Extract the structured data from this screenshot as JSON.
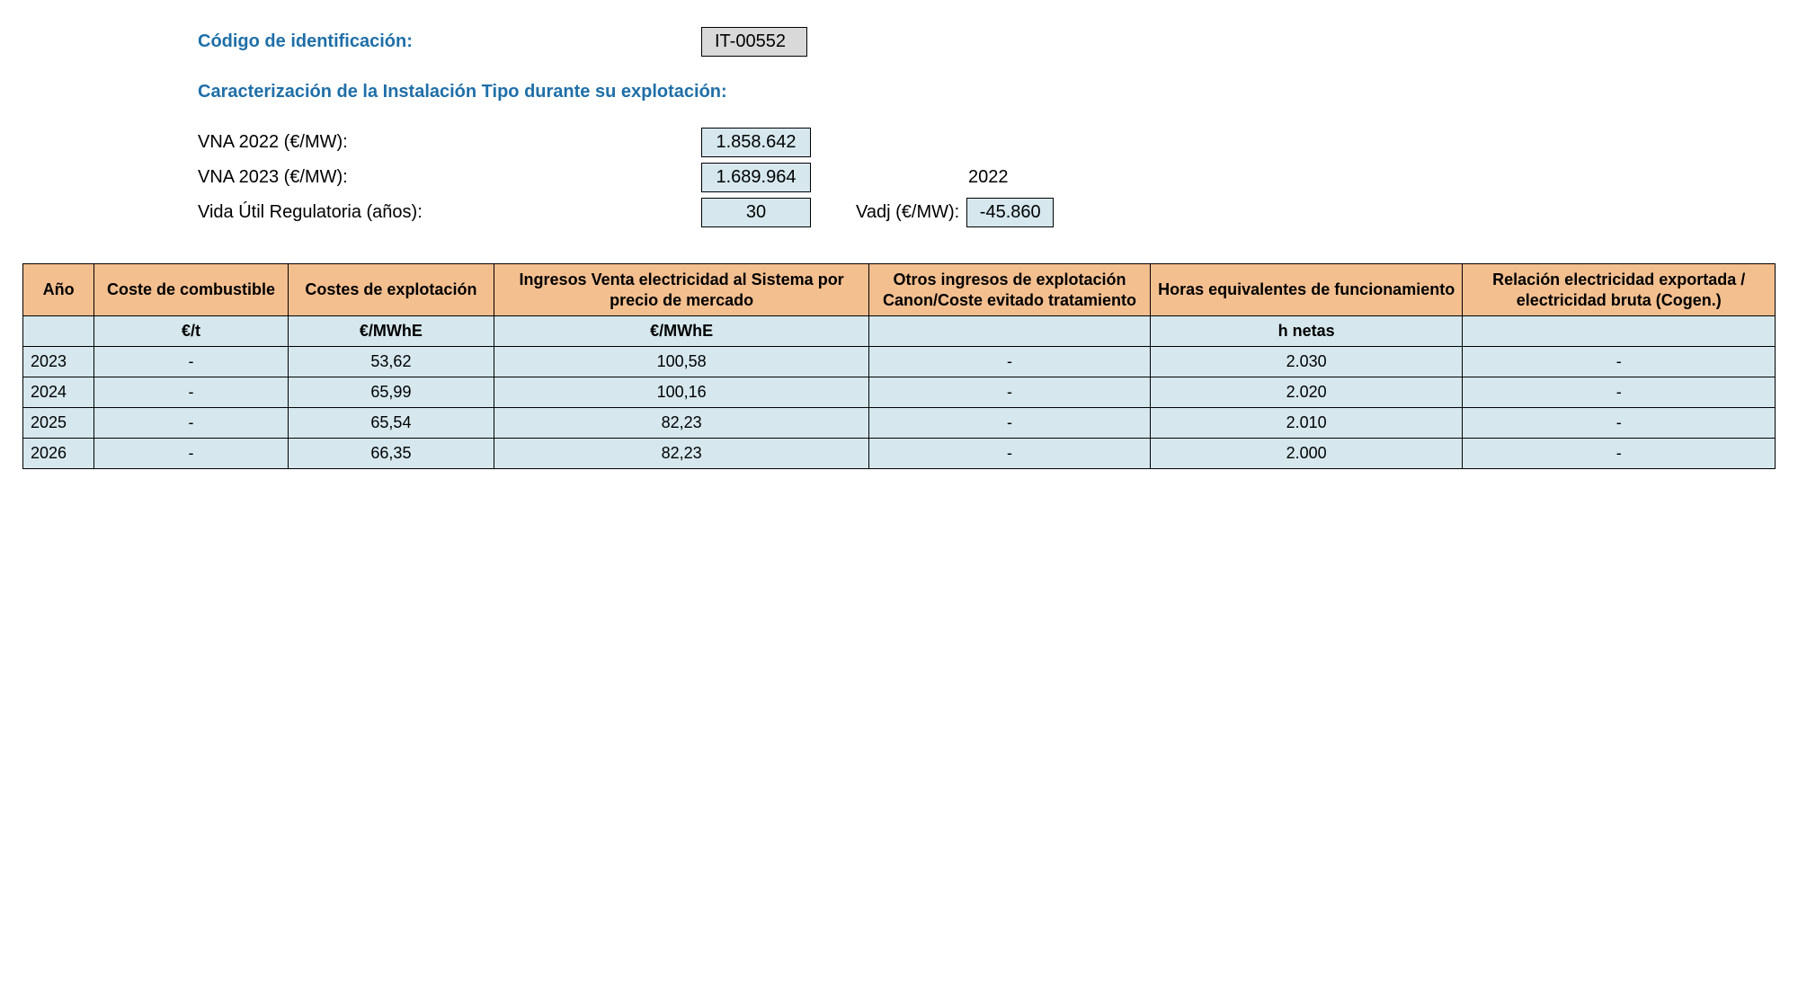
{
  "header": {
    "code_label": "Código de identificación:",
    "code_value": "IT-00552",
    "section_title": "Caracterización de la Instalación Tipo durante su explotación:",
    "params": [
      {
        "label": "VNA 2022 (€/MW):",
        "value": "1.858.642",
        "extra": null
      },
      {
        "label": "VNA 2023 (€/MW):",
        "value": "1.689.964",
        "extra": "2022"
      },
      {
        "label": "Vida Útil Regulatoria (años):",
        "value": "30",
        "vadj_label": "Vadj (€/MW):",
        "vadj_value": "-45.860"
      }
    ]
  },
  "table": {
    "header_bg": "#f4bf8f",
    "cell_bg": "#d6e8ee",
    "border_color": "#000000",
    "columns": [
      "Año",
      "Coste de combustible",
      "Costes de explotación",
      "Ingresos Venta electricidad al Sistema por precio de mercado",
      "Otros ingresos de explotación Canon/Coste evitado tratamiento",
      "Horas equivalentes de funcionamiento",
      "Relación electricidad exportada / electricidad bruta\n(Cogen.)"
    ],
    "units": [
      "",
      "€/t",
      "€/MWhE",
      "€/MWhE",
      "",
      "h netas",
      ""
    ],
    "rows": [
      [
        "2023",
        "-",
        "53,62",
        "100,58",
        "-",
        "2.030",
        "-"
      ],
      [
        "2024",
        "-",
        "65,99",
        "100,16",
        "-",
        "2.020",
        "-"
      ],
      [
        "2025",
        "-",
        "65,54",
        "82,23",
        "-",
        "2.010",
        "-"
      ],
      [
        "2026",
        "-",
        "66,35",
        "82,23",
        "-",
        "2.000",
        "-"
      ]
    ]
  }
}
